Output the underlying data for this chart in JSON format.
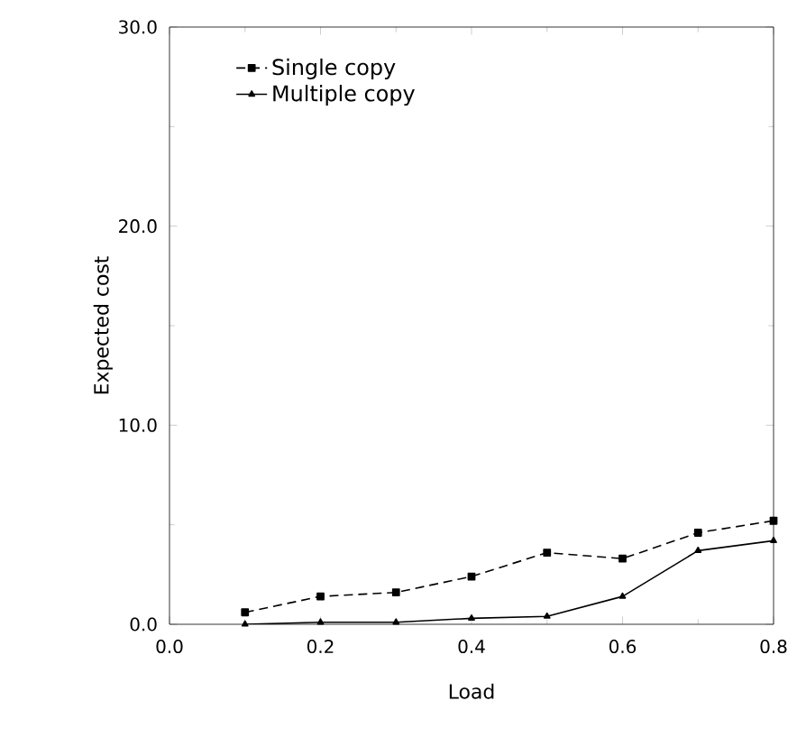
{
  "chart_data": {
    "type": "line",
    "xlabel": "Load",
    "ylabel": "Expected cost",
    "xlim": [
      0,
      0.8
    ],
    "ylim": [
      0,
      30
    ],
    "xticks": [
      {
        "value": 0,
        "label": "0.0"
      },
      {
        "value": 0.2,
        "label": "0.2"
      },
      {
        "value": 0.4,
        "label": "0.4"
      },
      {
        "value": 0.6,
        "label": "0.6"
      },
      {
        "value": 0.8,
        "label": "0.8"
      }
    ],
    "yticks": [
      {
        "value": 0,
        "label": "0.0"
      },
      {
        "value": 10,
        "label": "10.0"
      },
      {
        "value": 20,
        "label": "20.0"
      },
      {
        "value": 30,
        "label": "30.0"
      }
    ],
    "x": [
      0.1,
      0.2,
      0.3,
      0.4,
      0.5,
      0.6,
      0.7,
      0.8
    ],
    "legend": "top left",
    "grid": false,
    "series": [
      {
        "name": "Single copy",
        "color": "#000000",
        "marker": "square",
        "line_style": "dashed",
        "values": [
          0.6,
          1.4,
          1.6,
          2.4,
          3.6,
          3.3,
          4.6,
          5.2
        ]
      },
      {
        "name": "Multiple copy",
        "color": "#000000",
        "marker": "triangle",
        "line_style": "solid",
        "values": [
          0.0,
          0.1,
          0.1,
          0.3,
          0.4,
          1.4,
          3.7,
          4.2
        ]
      }
    ]
  }
}
